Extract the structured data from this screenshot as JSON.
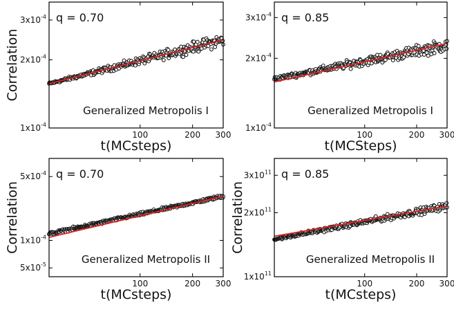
{
  "figure": {
    "colors": {
      "data": "#1a1a1a",
      "fit": "#e02020",
      "axis": "#000000"
    }
  },
  "chart_data": [
    {
      "type": "scatter",
      "xscale": "log",
      "yscale": "log",
      "xlabel": "t(MCsteps)",
      "ylabel": "Correlation",
      "annotation": "q = 0.70",
      "method": "Generalized Metropolis I",
      "xticks": [
        100,
        200,
        300
      ],
      "xtick_labels": [
        "100",
        "200",
        "300"
      ],
      "yticks": [
        {
          "base": "3x10",
          "exp": "-4",
          "value": 0.0003
        },
        {
          "base": "2x10",
          "exp": "-4",
          "value": 0.0002
        },
        {
          "base": "1x10",
          "exp": "-4",
          "value": 0.0001
        }
      ],
      "xlim": [
        30,
        300
      ],
      "ylim": [
        0.0001,
        0.00036
      ],
      "series": [
        {
          "kind": "data",
          "x_start": 30,
          "x_end": 300,
          "y_start": 0.000157,
          "y_end": 0.000245,
          "spread_start": 0.03,
          "spread_end": 0.16
        },
        {
          "kind": "fit",
          "x": [
            30,
            300
          ],
          "y": [
            0.000157,
            0.000245
          ]
        }
      ]
    },
    {
      "type": "scatter",
      "xscale": "log",
      "yscale": "log",
      "xlabel": "t(MCSteps)",
      "ylabel": "",
      "annotation": "q = 0.85",
      "method": "Generalized Metropolis I",
      "xticks": [
        100,
        200,
        300
      ],
      "xtick_labels": [
        "100",
        "200",
        "300"
      ],
      "yticks": [
        {
          "base": "3x10",
          "exp": "-4",
          "value": 0.0003
        },
        {
          "base": "2x10",
          "exp": "-4",
          "value": 0.0002
        },
        {
          "base": "1x10",
          "exp": "-4",
          "value": 0.0001
        }
      ],
      "xlim": [
        30,
        300
      ],
      "ylim": [
        0.0001,
        0.00035
      ],
      "series": [
        {
          "kind": "data",
          "x_start": 30,
          "x_end": 300,
          "y_start": 0.000163,
          "y_end": 0.000228,
          "spread_start": 0.05,
          "spread_end": 0.16
        },
        {
          "kind": "fit",
          "x": [
            30,
            300
          ],
          "y": [
            0.000158,
            0.000232
          ]
        }
      ]
    },
    {
      "type": "scatter",
      "xscale": "log",
      "yscale": "log",
      "xlabel": "t(MCsteps)",
      "ylabel": "Correlation",
      "annotation": "q = 0.70",
      "method": "Generalized Metropolis II",
      "xticks": [
        100,
        200,
        300
      ],
      "xtick_labels": [
        "100",
        "200",
        "300"
      ],
      "yticks": [
        {
          "base": "5x10",
          "exp": "-4",
          "value": 0.0005
        },
        {
          "base": "1x10",
          "exp": "-4",
          "value": 0.0001
        },
        {
          "base": "5x10",
          "exp": "-5",
          "value": 5e-05
        }
      ],
      "xlim": [
        30,
        300
      ],
      "ylim": [
        4e-05,
        0.00079
      ],
      "series": [
        {
          "kind": "data",
          "x_start": 30,
          "x_end": 300,
          "y_start": 0.000118,
          "y_end": 0.000305,
          "spread_start": 0.1,
          "spread_end": 0.1
        },
        {
          "kind": "fit",
          "x": [
            30,
            300
          ],
          "y": [
            0.000108,
            0.000305
          ]
        }
      ]
    },
    {
      "type": "scatter",
      "xscale": "log",
      "yscale": "log",
      "xlabel": "t(MCsteps)",
      "ylabel": "Correlation",
      "annotation": "q = 0.85",
      "method": "Generalized Metropolis II",
      "xticks": [
        100,
        200,
        300
      ],
      "xtick_labels": [
        "100",
        "200",
        "300"
      ],
      "yticks": [
        {
          "base": "3x10",
          "exp": "11",
          "value": 300000000000.0
        },
        {
          "base": "2x10",
          "exp": "11",
          "value": 200000000000.0
        },
        {
          "base": "1x10",
          "exp": "11",
          "value": 100000000000.0
        }
      ],
      "xlim": [
        30,
        300
      ],
      "ylim": [
        100000000000.0,
        360000000000.0
      ],
      "series": [
        {
          "kind": "data",
          "x_start": 30,
          "x_end": 300,
          "y_start": 150000000000.0,
          "y_end": 215000000000.0,
          "spread_start": 0.04,
          "spread_end": 0.1
        },
        {
          "kind": "fit",
          "x": [
            30,
            300
          ],
          "y": [
            155000000000.0,
            215000000000.0
          ]
        }
      ]
    }
  ]
}
